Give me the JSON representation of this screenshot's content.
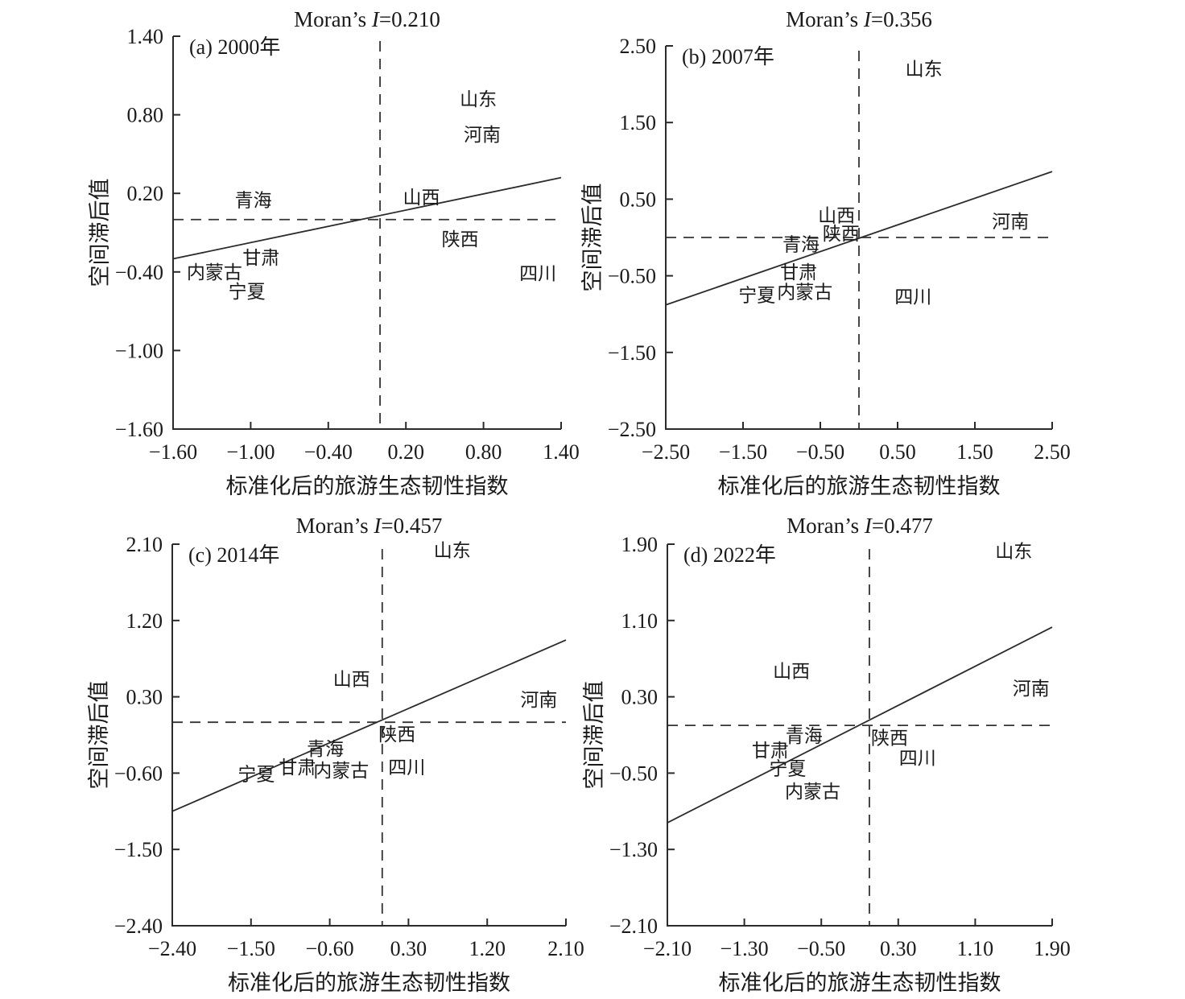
{
  "figure": {
    "background": "#ffffff",
    "text_color": "#1a1a1a",
    "axis_color": "#2b2b2b",
    "line_color": "#2b2b2b",
    "dash_color": "#333333"
  },
  "chart_data": {
    "type": "scatter",
    "description": "Moran scatter plots of standardized tourism ecological resilience index, four years, provinces labeled as text points; dashed mean crosshair at (0,0) and solid regression line in each panel",
    "xlabel": "标准化后的旅游生态韧性指数",
    "ylabel": "空间滞后值",
    "moran_prefix": "Moran’s ",
    "moran_symbol": "I",
    "grid": false,
    "panels": [
      {
        "id": "a",
        "panel_label": "(a) 2000年",
        "moran_value": "=0.210",
        "moran_i": 0.21,
        "xlim": [
          -1.6,
          1.4
        ],
        "ylim": [
          -1.6,
          1.4
        ],
        "xticks": [
          -1.6,
          -1.0,
          -0.4,
          0.2,
          0.8,
          1.4
        ],
        "xtick_labels": [
          "−1.60",
          "−1.00",
          "−0.40",
          "0.20",
          "0.80",
          "1.40"
        ],
        "yticks": [
          1.4,
          0.8,
          0.2,
          -0.4,
          -1.0,
          -1.6
        ],
        "ytick_labels": [
          "1.40",
          "0.80",
          "0.20",
          "−0.40",
          "−1.00",
          "−1.60"
        ],
        "vline_x": 0,
        "hline_y": 0,
        "trend_line": {
          "x1": -1.6,
          "y1": -0.3,
          "x2": 1.4,
          "y2": 0.32
        },
        "provinces": [
          {
            "name": "山东",
            "x": 0.76,
            "y": 0.92
          },
          {
            "name": "河南",
            "x": 0.79,
            "y": 0.65
          },
          {
            "name": "青海",
            "x": -0.98,
            "y": 0.15
          },
          {
            "name": "山西",
            "x": 0.32,
            "y": 0.17
          },
          {
            "name": "陕西",
            "x": 0.62,
            "y": -0.15
          },
          {
            "name": "甘肃",
            "x": -0.92,
            "y": -0.29
          },
          {
            "name": "内蒙古",
            "x": -1.28,
            "y": -0.4
          },
          {
            "name": "宁夏",
            "x": -1.03,
            "y": -0.55
          },
          {
            "name": "四川",
            "x": 1.22,
            "y": -0.41
          }
        ]
      },
      {
        "id": "b",
        "panel_label": "(b) 2007年",
        "moran_value": "=0.356",
        "moran_i": 0.356,
        "xlim": [
          -2.5,
          2.5
        ],
        "ylim": [
          -2.5,
          2.5
        ],
        "xticks": [
          -2.5,
          -1.5,
          -0.5,
          0.5,
          1.5,
          2.5
        ],
        "xtick_labels": [
          "−2.50",
          "−1.50",
          "−0.50",
          "0.50",
          "1.50",
          "2.50"
        ],
        "yticks": [
          2.5,
          1.5,
          0.5,
          -0.5,
          -1.5,
          -2.5
        ],
        "ytick_labels": [
          "2.50",
          "1.50",
          "0.50",
          "−0.50",
          "−1.50",
          "−2.50"
        ],
        "vline_x": 0,
        "hline_y": 0,
        "trend_line": {
          "x1": -2.5,
          "y1": -0.88,
          "x2": 2.5,
          "y2": 0.86
        },
        "provinces": [
          {
            "name": "山东",
            "x": 0.84,
            "y": 2.2
          },
          {
            "name": "河南",
            "x": 1.96,
            "y": 0.21
          },
          {
            "name": "山西",
            "x": -0.29,
            "y": 0.29
          },
          {
            "name": "陕西",
            "x": -0.23,
            "y": 0.05
          },
          {
            "name": "青海",
            "x": -0.75,
            "y": -0.09
          },
          {
            "name": "甘肃",
            "x": -0.78,
            "y": -0.45
          },
          {
            "name": "宁夏",
            "x": -1.32,
            "y": -0.75
          },
          {
            "name": "内蒙古",
            "x": -0.7,
            "y": -0.71
          },
          {
            "name": "四川",
            "x": 0.7,
            "y": -0.77
          }
        ]
      },
      {
        "id": "c",
        "panel_label": "(c) 2014年",
        "moran_value": "=0.457",
        "moran_i": 0.457,
        "xlim": [
          -2.4,
          2.1
        ],
        "ylim": [
          -2.4,
          2.1
        ],
        "xticks": [
          -2.4,
          -1.5,
          -0.6,
          0.3,
          1.2,
          2.1
        ],
        "xtick_labels": [
          "−2.40",
          "−1.50",
          "−0.60",
          "0.30",
          "1.20",
          "2.10"
        ],
        "yticks": [
          2.1,
          1.2,
          0.3,
          -0.6,
          -1.5,
          -2.4
        ],
        "ytick_labels": [
          "2.10",
          "1.20",
          "0.30",
          "−0.60",
          "−1.50",
          "−2.40"
        ],
        "vline_x": 0,
        "hline_y": 0,
        "trend_line": {
          "x1": -2.4,
          "y1": -1.05,
          "x2": 2.1,
          "y2": 0.97
        },
        "provinces": [
          {
            "name": "山东",
            "x": 0.8,
            "y": 2.03
          },
          {
            "name": "山西",
            "x": -0.35,
            "y": 0.51
          },
          {
            "name": "河南",
            "x": 1.79,
            "y": 0.27
          },
          {
            "name": "陕西",
            "x": 0.17,
            "y": -0.14
          },
          {
            "name": "青海",
            "x": -0.65,
            "y": -0.31
          },
          {
            "name": "甘肃",
            "x": -0.97,
            "y": -0.53
          },
          {
            "name": "宁夏",
            "x": -1.44,
            "y": -0.61
          },
          {
            "name": "内蒙古",
            "x": -0.47,
            "y": -0.57
          },
          {
            "name": "四川",
            "x": 0.28,
            "y": -0.53
          }
        ]
      },
      {
        "id": "d",
        "panel_label": "(d) 2022年",
        "moran_value": "=0.477",
        "moran_i": 0.477,
        "xlim": [
          -2.1,
          1.9
        ],
        "ylim": [
          -2.1,
          1.9
        ],
        "xticks": [
          -2.1,
          -1.3,
          -0.5,
          0.3,
          1.1,
          1.9
        ],
        "xtick_labels": [
          "−2.10",
          "−1.30",
          "−0.50",
          "0.30",
          "1.10",
          "1.90"
        ],
        "yticks": [
          1.9,
          1.1,
          0.3,
          -0.5,
          -1.3,
          -2.1
        ],
        "ytick_labels": [
          "1.90",
          "1.10",
          "0.30",
          "−0.50",
          "−1.30",
          "−2.10"
        ],
        "vline_x": 0,
        "hline_y": 0,
        "trend_line": {
          "x1": -2.1,
          "y1": -1.02,
          "x2": 1.9,
          "y2": 1.03
        },
        "provinces": [
          {
            "name": "山东",
            "x": 1.5,
            "y": 1.83
          },
          {
            "name": "山西",
            "x": -0.81,
            "y": 0.57
          },
          {
            "name": "河南",
            "x": 1.68,
            "y": 0.39
          },
          {
            "name": "青海",
            "x": -0.68,
            "y": -0.11
          },
          {
            "name": "陕西",
            "x": 0.21,
            "y": -0.13
          },
          {
            "name": "甘肃",
            "x": -1.03,
            "y": -0.26
          },
          {
            "name": "宁夏",
            "x": -0.85,
            "y": -0.45
          },
          {
            "name": "内蒙古",
            "x": -0.59,
            "y": -0.69
          },
          {
            "name": "四川",
            "x": 0.5,
            "y": -0.34
          }
        ]
      }
    ]
  }
}
